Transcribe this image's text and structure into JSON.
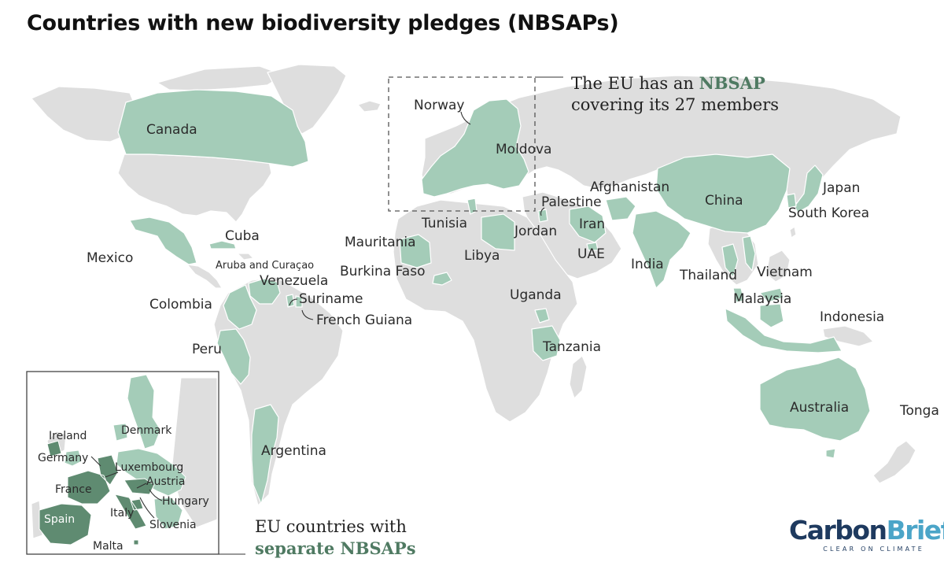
{
  "title": "Countries with new biodiversity pledges (NBSAPs)",
  "colors": {
    "land": "#dedede",
    "pledge": "#a4ccb8",
    "eu_separate": "#5f8b71",
    "label": "#2b2b2b",
    "accent_text": "#4f7a62"
  },
  "annotations": {
    "eu_line1": "The EU has an ",
    "eu_highlight": "NBSAP",
    "eu_line2": "covering its 27 members",
    "sep_line1": "EU countries with",
    "sep_highlight": "separate NBSAPs"
  },
  "country_labels": {
    "canada": "Canada",
    "mexico": "Mexico",
    "cuba": "Cuba",
    "aruba_curacao": "Aruba and Curaçao",
    "venezuela": "Venezuela",
    "colombia": "Colombia",
    "suriname": "Suriname",
    "french_guiana": "French Guiana",
    "peru": "Peru",
    "argentina": "Argentina",
    "norway": "Norway",
    "moldova": "Moldova",
    "palestine": "Palestine",
    "tunisia": "Tunisia",
    "jordan": "Jordan",
    "mauritania": "Mauritania",
    "libya": "Libya",
    "burkina_faso": "Burkina Faso",
    "uganda": "Uganda",
    "tanzania": "Tanzania",
    "afghanistan": "Afghanistan",
    "iran": "Iran",
    "uae": "UAE",
    "india": "India",
    "china": "China",
    "japan": "Japan",
    "south_korea": "South Korea",
    "thailand": "Thailand",
    "vietnam": "Vietnam",
    "malaysia": "Malaysia",
    "indonesia": "Indonesia",
    "australia": "Australia",
    "tonga": "Tonga"
  },
  "inset_labels": {
    "ireland": "Ireland",
    "denmark": "Denmark",
    "germany": "Germany",
    "luxembourg": "Luxembourg",
    "austria": "Austria",
    "france": "France",
    "hungary": "Hungary",
    "spain": "Spain",
    "italy": "Italy",
    "slovenia": "Slovenia",
    "malta": "Malta"
  },
  "logo": {
    "word_part1": "Carbon",
    "word_part2": "Brief",
    "tagline": "CLEAR ON CLIMATE"
  }
}
